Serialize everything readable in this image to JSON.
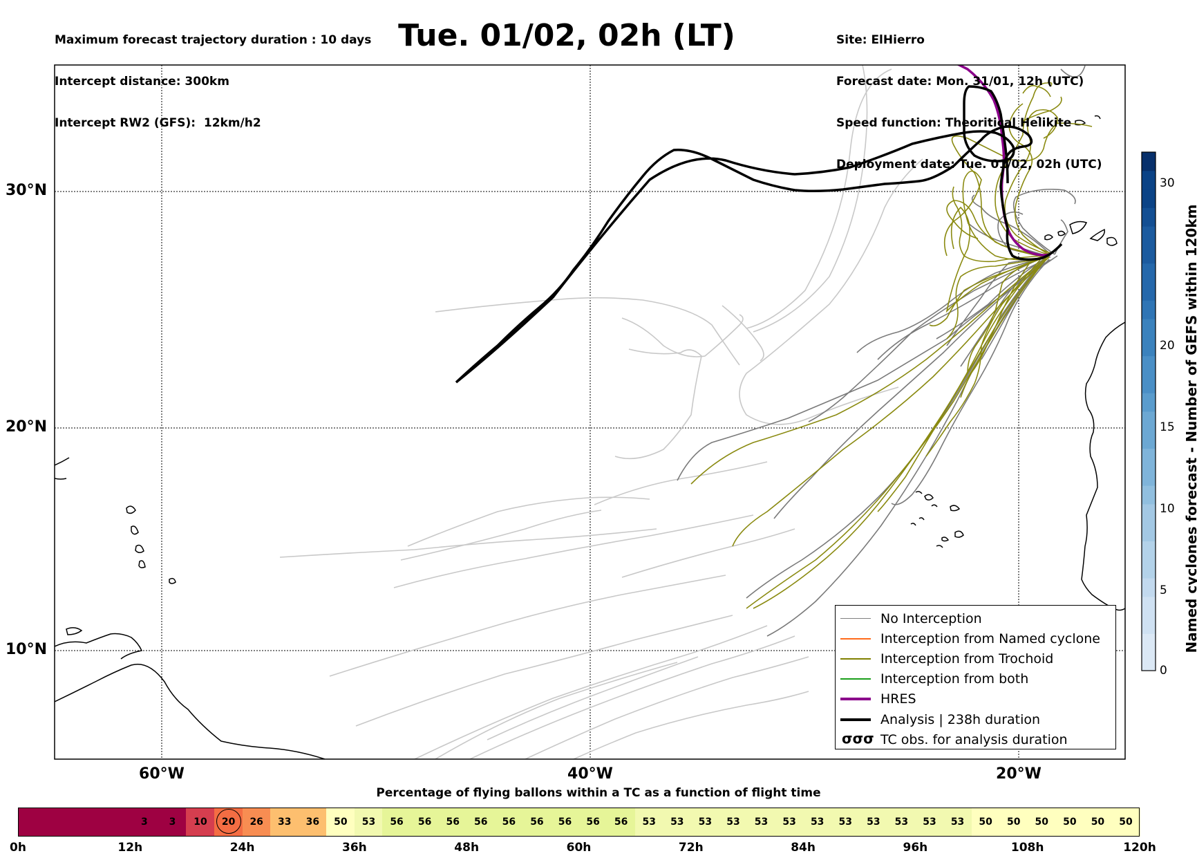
{
  "header_left": [
    "Maximum forecast trajectory duration : 10 days",
    "Intercept distance: 300km",
    "Intercept RW2 (GFS):  12km/h2"
  ],
  "title": "Tue. 01/02, 02h (LT)",
  "header_right": [
    "Site: ElHierro",
    "Forecast date: Mon. 31/01, 12h (UTC)",
    "Speed function: Theoritical Helikite",
    "Deployment date: Tue. 01/02, 02h (UTC)"
  ],
  "map": {
    "lat_labels": [
      "30°N",
      "20°N",
      "10°N"
    ],
    "lon_labels": [
      "60°W",
      "40°W",
      "20°W"
    ],
    "site": "ElHierro"
  },
  "legend": [
    {
      "label": "No Interception",
      "color": "#808080",
      "style": "thin"
    },
    {
      "label": "Interception from Named cyclone",
      "color": "#ff6a1a",
      "style": "thin"
    },
    {
      "label": "Interception from Trochoid",
      "color": "#808000",
      "style": "thin"
    },
    {
      "label": "Interception from both",
      "color": "#1a9e1a",
      "style": "thin"
    },
    {
      "label": "HRES",
      "color": "#8b008b",
      "style": "thick"
    },
    {
      "label": "Analysis | 238h duration",
      "color": "#000000",
      "style": "thick"
    },
    {
      "label": "TC obs. for analysis duration",
      "color": "#000000",
      "style": "tc"
    }
  ],
  "colorbar": {
    "title": "Named cyclones forecast - Number of GEFS within 120km",
    "ticks": [
      "0",
      "5",
      "10",
      "15",
      "20",
      "30"
    ]
  },
  "percentage": {
    "title": "Percentage of flying ballons within a TC as a function of flight time",
    "cells": [
      "",
      "",
      "",
      "",
      "3",
      "3",
      "10",
      "20",
      "26",
      "33",
      "36",
      "50",
      "53",
      "56",
      "56",
      "56",
      "56",
      "56",
      "56",
      "56",
      "56",
      "56",
      "53",
      "53",
      "53",
      "53",
      "53",
      "53",
      "53",
      "53",
      "53",
      "53",
      "53",
      "53",
      "50",
      "50",
      "50",
      "50",
      "50",
      "50"
    ],
    "times": [
      "0h",
      "12h",
      "24h",
      "36h",
      "48h",
      "60h",
      "72h",
      "84h",
      "96h",
      "108h",
      "120h"
    ]
  }
}
